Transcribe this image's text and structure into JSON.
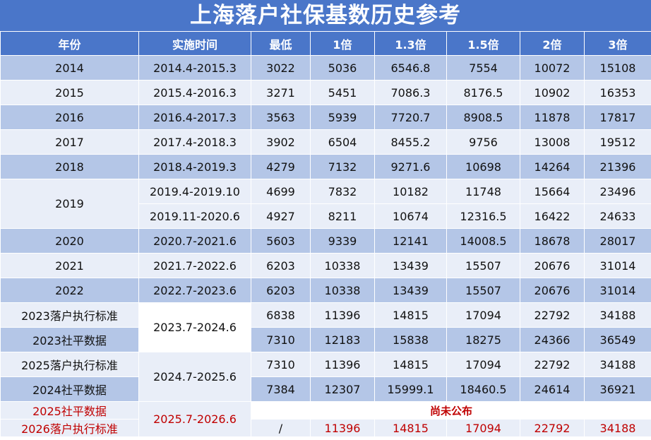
{
  "title": "上海落户社保基数历史参考",
  "headers": [
    "年份",
    "实施时间",
    "最低",
    "1倍",
    "1.3倍",
    "1.5倍",
    "2倍",
    "3倍"
  ],
  "rows": [
    {
      "year": "2014",
      "period": "2014.4-2015.3",
      "values": [
        "3022",
        "5036",
        "6546.8",
        "7554",
        "10072",
        "15108"
      ]
    },
    {
      "year": "2015",
      "period": "2015.4-2016.3",
      "values": [
        "3271",
        "5451",
        "7086.3",
        "8176.5",
        "10902",
        "16353"
      ]
    },
    {
      "year": "2016",
      "period": "2016.4-2017.3",
      "values": [
        "3563",
        "5939",
        "7720.7",
        "8908.5",
        "11878",
        "17817"
      ]
    },
    {
      "year": "2017",
      "period": "2017.4-2018.3",
      "values": [
        "3902",
        "6504",
        "8455.2",
        "9756",
        "13008",
        "19512"
      ]
    },
    {
      "year": "2018",
      "period": "2018.4-2019.3",
      "values": [
        "4279",
        "7132",
        "9271.6",
        "10698",
        "14264",
        "21396"
      ]
    },
    {
      "year": "2019",
      "period": "2019.4-2019.10",
      "values": [
        "4699",
        "7832",
        "10182",
        "11748",
        "15664",
        "23496"
      ]
    },
    {
      "year": "",
      "period": "2019.11-2020.6",
      "values": [
        "4927",
        "8211",
        "10674",
        "12316.5",
        "16422",
        "24633"
      ]
    },
    {
      "year": "2020",
      "period": "2020.7-2021.6",
      "values": [
        "5603",
        "9339",
        "12141",
        "14008.5",
        "18678",
        "28017"
      ]
    },
    {
      "year": "2021",
      "period": "2021.7-2022.6",
      "values": [
        "6203",
        "10338",
        "13439",
        "15507",
        "20676",
        "31014"
      ]
    },
    {
      "year": "2022",
      "period": "2022.7-2023.6",
      "values": [
        "6203",
        "10338",
        "13439",
        "15507",
        "20676",
        "31014"
      ]
    },
    {
      "year": "2023落户执行标准",
      "period": "2023.7-2024.6",
      "values": [
        "6838",
        "11396",
        "14815",
        "17094",
        "22792",
        "34188"
      ]
    },
    {
      "year": "2023社平数据",
      "period": "",
      "values": [
        "7310",
        "12183",
        "15838",
        "18275",
        "24366",
        "36549"
      ]
    },
    {
      "year": "2025落户执行标准",
      "period": "2024.7-2025.6",
      "values": [
        "7310",
        "11396",
        "14815",
        "17094",
        "22792",
        "34188"
      ]
    },
    {
      "year": "2024社平数据",
      "period": "",
      "values": [
        "7384",
        "12307",
        "15999.1",
        "18460.5",
        "24614",
        "36921"
      ]
    }
  ],
  "future": {
    "row1_year": "2025社平数据",
    "period": "2025.7-2026.6",
    "pending": "尚未公布",
    "row2_year": "2026落户执行标准",
    "row2_values": [
      "/",
      "11396",
      "14815",
      "17094",
      "22792",
      "34188"
    ]
  },
  "colors": {
    "header_blue": "#4a76c9",
    "row_dark": "#b4c6e7",
    "row_light": "#e9eef8",
    "accent_red": "#c00000"
  }
}
